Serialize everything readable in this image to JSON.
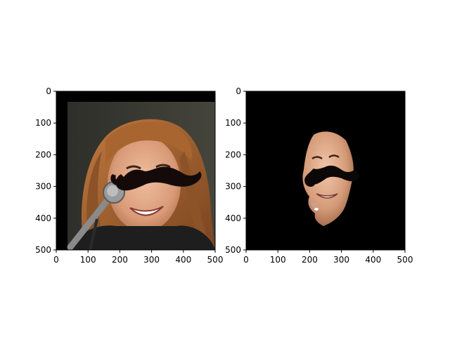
{
  "figure": {
    "background": "#ffffff",
    "panel_count": 2
  },
  "chart_data": [
    {
      "type": "image",
      "content": "photo of a smiling woman with shoulder-length auburn hair at a microphone, with a black cartoon mustache overlaid on her face",
      "xlim": [
        0,
        500
      ],
      "ylim": [
        500,
        0
      ],
      "y_inverted": true,
      "xticks": [
        0,
        100,
        200,
        300,
        400,
        500
      ],
      "yticks": [
        0,
        100,
        200,
        300,
        400,
        500
      ],
      "xlabel": "",
      "ylabel": "",
      "grid": false,
      "colors": {
        "frame_border": "#000000",
        "hair": "#a86a36",
        "skin": "#e0a07e",
        "mustache": "#150a0a",
        "background": "#3a3a34"
      }
    },
    {
      "type": "image",
      "content": "face-only masked version: skin region with the mustache overlay, everything else black",
      "xlim": [
        0,
        500
      ],
      "ylim": [
        500,
        0
      ],
      "y_inverted": true,
      "xticks": [
        0,
        100,
        200,
        300,
        400,
        500
      ],
      "yticks": [
        0,
        100,
        200,
        300,
        400,
        500
      ],
      "xlabel": "",
      "ylabel": "",
      "grid": false,
      "colors": {
        "mask_background": "#000000",
        "skin": "#d9a07c",
        "mustache": "#0c0808"
      }
    }
  ]
}
